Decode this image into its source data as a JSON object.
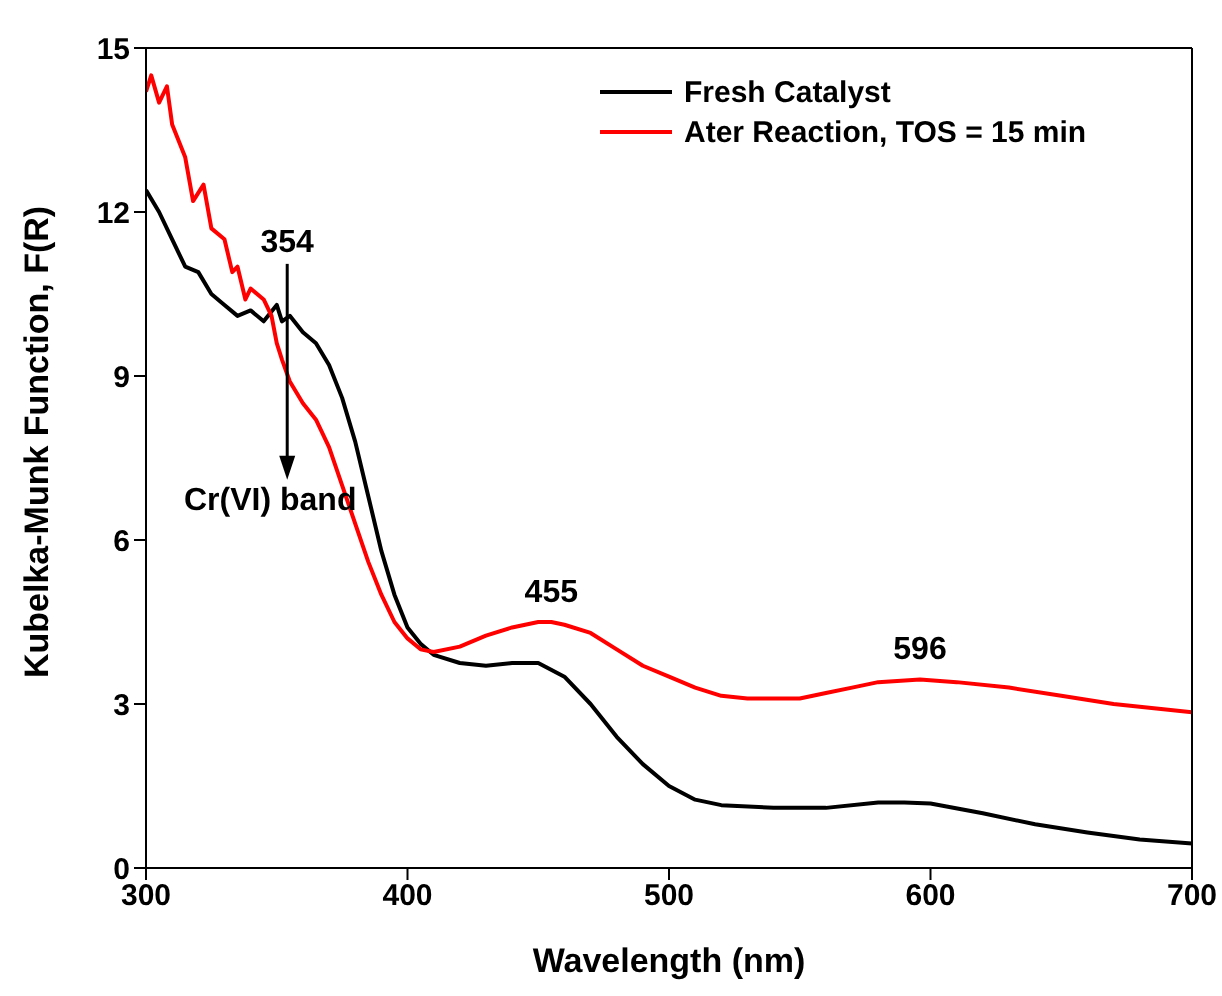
{
  "chart_data": {
    "type": "line",
    "xlabel": "Wavelength (nm)",
    "ylabel": "Kubelka-Munk Function, F(R)",
    "xlim": [
      300,
      700
    ],
    "xticks": [
      300,
      400,
      500,
      600,
      700
    ],
    "ylim": [
      0,
      15
    ],
    "yticks": [
      0,
      3,
      6,
      9,
      12,
      15
    ],
    "legend": "top right",
    "marker": "none",
    "line_style": "solid",
    "annotations": [
      {
        "text": "354",
        "x": 354,
        "y": 10.1
      },
      "Cr(VI) band",
      {
        "text": "455",
        "x": 455,
        "y": 4.5
      },
      {
        "text": "596",
        "x": 596,
        "y": 3.45
      }
    ],
    "series": [
      {
        "name": "Fresh Catalyst",
        "color": "#000000",
        "x": [
          300,
          305,
          310,
          315,
          320,
          325,
          330,
          335,
          340,
          345,
          350,
          352,
          355,
          360,
          365,
          370,
          375,
          380,
          385,
          390,
          395,
          400,
          405,
          410,
          420,
          430,
          440,
          450,
          460,
          470,
          480,
          490,
          500,
          510,
          520,
          540,
          560,
          580,
          590,
          600,
          620,
          640,
          660,
          680,
          700
        ],
        "values": [
          12.4,
          12.0,
          11.5,
          11.0,
          10.9,
          10.5,
          10.3,
          10.1,
          10.2,
          10.0,
          10.3,
          10.0,
          10.1,
          9.8,
          9.6,
          9.2,
          8.6,
          7.8,
          6.8,
          5.8,
          5.0,
          4.4,
          4.1,
          3.9,
          3.75,
          3.7,
          3.75,
          3.75,
          3.5,
          3.0,
          2.4,
          1.9,
          1.5,
          1.25,
          1.15,
          1.1,
          1.1,
          1.2,
          1.2,
          1.18,
          1.0,
          0.8,
          0.65,
          0.52,
          0.45
        ]
      },
      {
        "name": "Ater Reaction, TOS = 15 min",
        "color": "#ff0000",
        "x": [
          300,
          302,
          305,
          308,
          310,
          315,
          318,
          322,
          325,
          330,
          333,
          335,
          338,
          340,
          345,
          348,
          350,
          352,
          355,
          360,
          365,
          370,
          375,
          380,
          385,
          390,
          395,
          400,
          405,
          410,
          420,
          430,
          440,
          450,
          455,
          460,
          470,
          480,
          490,
          500,
          510,
          520,
          530,
          540,
          550,
          560,
          570,
          580,
          596,
          610,
          630,
          650,
          670,
          690,
          700
        ],
        "values": [
          14.2,
          14.5,
          14.0,
          14.3,
          13.6,
          13.0,
          12.2,
          12.5,
          11.7,
          11.5,
          10.9,
          11.0,
          10.4,
          10.6,
          10.4,
          10.1,
          9.6,
          9.3,
          8.9,
          8.5,
          8.2,
          7.7,
          7.0,
          6.3,
          5.6,
          5.0,
          4.5,
          4.2,
          4.0,
          3.95,
          4.05,
          4.25,
          4.4,
          4.5,
          4.5,
          4.45,
          4.3,
          4.0,
          3.7,
          3.5,
          3.3,
          3.15,
          3.1,
          3.1,
          3.1,
          3.2,
          3.3,
          3.4,
          3.45,
          3.4,
          3.3,
          3.15,
          3.0,
          2.9,
          2.85
        ]
      }
    ]
  }
}
